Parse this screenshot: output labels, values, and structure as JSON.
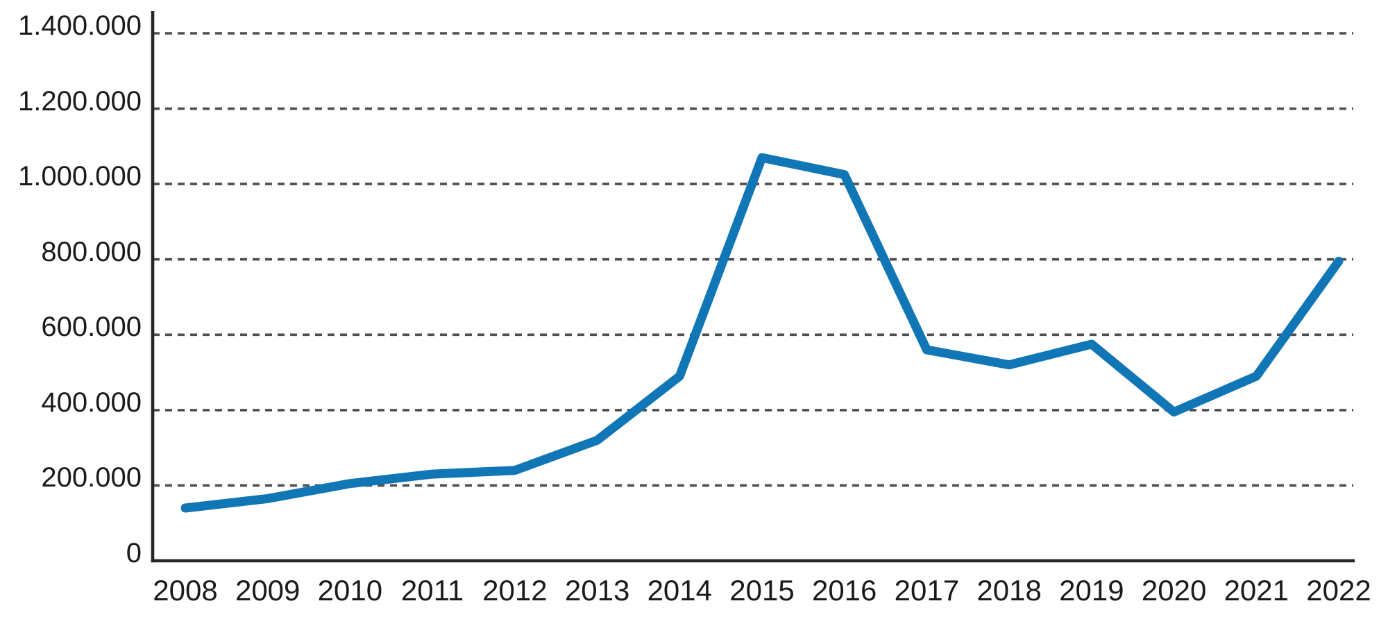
{
  "chart_data": {
    "type": "line",
    "title": "",
    "xlabel": "",
    "ylabel": "",
    "categories": [
      "2008",
      "2009",
      "2010",
      "2011",
      "2012",
      "2013",
      "2014",
      "2015",
      "2016",
      "2017",
      "2018",
      "2019",
      "2020",
      "2021",
      "2022"
    ],
    "values": [
      140000,
      165000,
      205000,
      230000,
      240000,
      320000,
      490000,
      1070000,
      1025000,
      560000,
      520000,
      575000,
      395000,
      490000,
      795000
    ],
    "ylim": [
      0,
      1400000
    ],
    "grid": "horizontal-dashed",
    "legend_position": "none",
    "number_format": "de-DE dotted thousands",
    "colors": {
      "line": "#1176b5",
      "grid": "#4f4f4f",
      "axis": "#262626",
      "text": "#1a1a1a"
    }
  },
  "y_axis": {
    "ticks": [
      {
        "value": 0,
        "label": "0"
      },
      {
        "value": 200000,
        "label": "200.000"
      },
      {
        "value": 400000,
        "label": "400.000"
      },
      {
        "value": 600000,
        "label": "600.000"
      },
      {
        "value": 800000,
        "label": "800.000"
      },
      {
        "value": 1000000,
        "label": "1.000.000"
      },
      {
        "value": 1200000,
        "label": "1.200.000"
      },
      {
        "value": 1400000,
        "label": "1.400.000"
      }
    ]
  }
}
